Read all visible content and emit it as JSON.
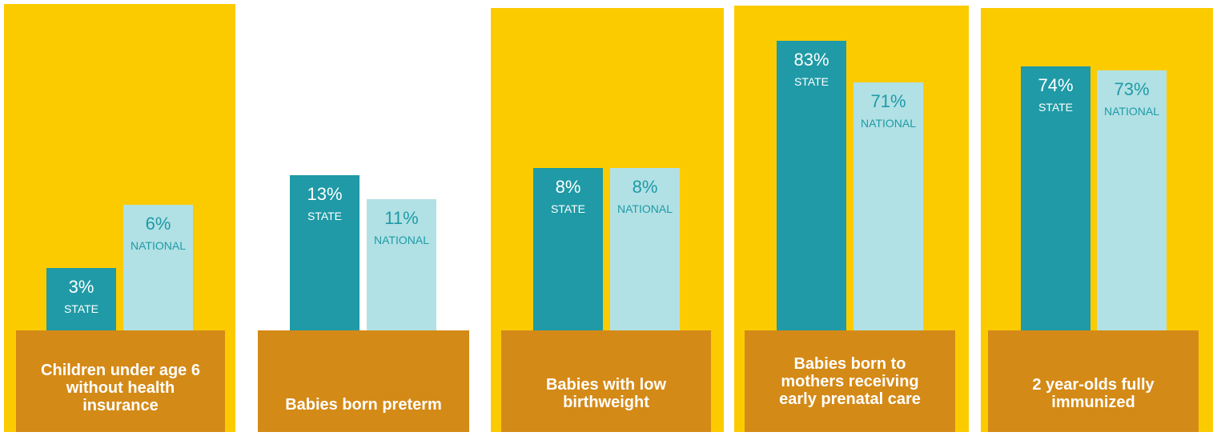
{
  "colors": {
    "panel": "#FBCB00",
    "base": "#D48A17",
    "state": "#1F9AA6",
    "national": "#B1E1E5",
    "state_text": "#ffffff",
    "national_text": "#1F9AA6"
  },
  "chart_data": {
    "type": "bar",
    "unit": "%",
    "series": [
      {
        "name": "STATE",
        "value_labels": [
          "3%",
          "13%",
          "8%",
          "83%",
          "74%"
        ],
        "values": [
          3,
          13,
          8,
          83,
          74
        ]
      },
      {
        "name": "NATIONAL",
        "value_labels": [
          "6%",
          "11%",
          "8%",
          "71%",
          "73%"
        ],
        "values": [
          6,
          11,
          8,
          71,
          73
        ]
      }
    ],
    "categories": [
      "Children under age 6 without health insurance",
      "Babies born preterm",
      "Babies with low birthweight",
      "Babies born to mothers receiving early prenatal care",
      "2 year-olds fully immunized"
    ],
    "panel_ylim": [
      [
        0,
        15.6
      ],
      [
        0,
        27.3
      ],
      [
        0,
        16.1
      ],
      [
        0,
        93.5
      ],
      [
        0,
        91.6
      ]
    ]
  }
}
